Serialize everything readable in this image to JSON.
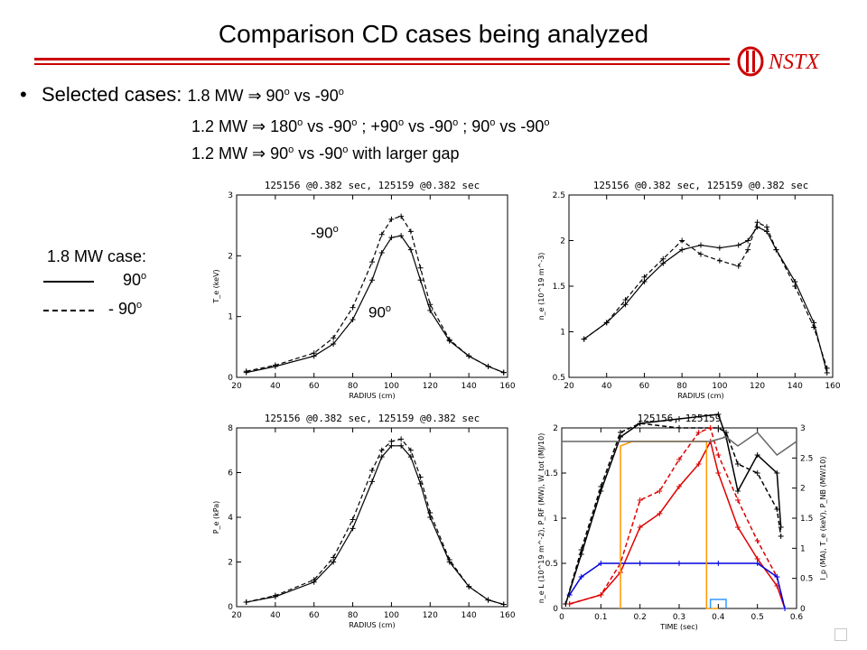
{
  "header": {
    "title": "Comparison CD cases being analyzed",
    "rule_color": "#cc0000"
  },
  "logo": {
    "text": "NSTX",
    "color": "#cc0000"
  },
  "bullets": {
    "lead": "Selected cases:",
    "lines": [
      {
        "pre": "1.8 MW ⇒ 90",
        "s1": "o",
        "mid": " vs -90",
        "s2": "o",
        "post": "",
        "s3": "",
        "tail": "",
        "s4": "",
        "end": "",
        "s5": ""
      },
      {
        "pre": "1.2 MW ⇒ 180",
        "s1": "o",
        "mid": " vs -90",
        "s2": "o",
        "post": " ; +90",
        "s3": "o",
        "tail": " vs -90",
        "s4": "o",
        "end": " ; 90",
        "s5": "o",
        "extra": " vs -90",
        "s6": "o"
      },
      {
        "pre": "1.2 MW ⇒ 90",
        "s1": "o",
        "mid": " vs -90",
        "s2": "o",
        "post": " with larger gap"
      }
    ]
  },
  "legend": {
    "title": "1.8 MW case:",
    "solid_label": "90",
    "solid_sup": "o",
    "dashed_label": "- 90",
    "dashed_sup": "o"
  },
  "annotations": {
    "minus90": "-90",
    "minus90_sup": "o",
    "plus90": "90",
    "plus90_sup": "o"
  },
  "chart_data": [
    {
      "id": "te",
      "type": "line",
      "title": "125156 @0.382 sec, 125159 @0.382 sec",
      "xlabel": "RADIUS (cm)",
      "ylabel": "T_e (keV)",
      "xlim": [
        20,
        160
      ],
      "ylim": [
        0,
        3
      ],
      "xticks": [
        20,
        40,
        60,
        80,
        100,
        120,
        140,
        160
      ],
      "yticks": [
        0,
        1,
        2,
        3
      ],
      "series": [
        {
          "style": "solid",
          "x": [
            25,
            40,
            60,
            70,
            80,
            90,
            95,
            100,
            105,
            110,
            115,
            120,
            130,
            140,
            150,
            158
          ],
          "y": [
            0.08,
            0.18,
            0.35,
            0.55,
            0.95,
            1.6,
            2.05,
            2.3,
            2.33,
            2.1,
            1.6,
            1.1,
            0.6,
            0.35,
            0.18,
            0.08
          ]
        },
        {
          "style": "dashed",
          "x": [
            25,
            40,
            60,
            70,
            80,
            90,
            95,
            100,
            105,
            110,
            115,
            120,
            130,
            140,
            150,
            158
          ],
          "y": [
            0.1,
            0.2,
            0.4,
            0.65,
            1.15,
            1.9,
            2.35,
            2.6,
            2.65,
            2.4,
            1.8,
            1.2,
            0.62,
            0.35,
            0.18,
            0.08
          ]
        }
      ]
    },
    {
      "id": "ne",
      "type": "line",
      "title": "125156 @0.382 sec, 125159 @0.382 sec",
      "xlabel": "RADIUS (cm)",
      "ylabel": "n_e (10^19 m^-3)",
      "xlim": [
        20,
        160
      ],
      "ylim": [
        0.5,
        2.5
      ],
      "xticks": [
        20,
        40,
        60,
        80,
        100,
        120,
        140,
        160
      ],
      "yticks": [
        0.5,
        1.0,
        1.5,
        2.0,
        2.5
      ],
      "series": [
        {
          "style": "solid",
          "x": [
            28,
            40,
            50,
            60,
            70,
            80,
            90,
            100,
            110,
            115,
            120,
            125,
            130,
            140,
            150,
            157
          ],
          "y": [
            0.92,
            1.1,
            1.3,
            1.55,
            1.75,
            1.9,
            1.95,
            1.92,
            1.95,
            2.0,
            2.15,
            2.1,
            1.9,
            1.55,
            1.1,
            0.55
          ]
        },
        {
          "style": "dashed",
          "x": [
            28,
            40,
            50,
            60,
            70,
            80,
            90,
            100,
            110,
            115,
            120,
            125,
            130,
            140,
            150,
            157
          ],
          "y": [
            0.92,
            1.1,
            1.35,
            1.6,
            1.8,
            2.0,
            1.85,
            1.78,
            1.72,
            1.9,
            2.2,
            2.15,
            1.9,
            1.5,
            1.05,
            0.6
          ]
        }
      ]
    },
    {
      "id": "pe",
      "type": "line",
      "title": "125156 @0.382 sec, 125159 @0.382 sec",
      "xlabel": "RADIUS (cm)",
      "ylabel": "P_e (kPa)",
      "xlim": [
        20,
        160
      ],
      "ylim": [
        0,
        8
      ],
      "xticks": [
        20,
        40,
        60,
        80,
        100,
        120,
        140,
        160
      ],
      "yticks": [
        0,
        2,
        4,
        6,
        8
      ],
      "series": [
        {
          "style": "solid",
          "x": [
            25,
            40,
            60,
            70,
            80,
            90,
            95,
            100,
            105,
            110,
            115,
            120,
            130,
            140,
            150,
            158
          ],
          "y": [
            0.2,
            0.45,
            1.1,
            2.0,
            3.5,
            5.6,
            6.7,
            7.2,
            7.2,
            6.7,
            5.5,
            4.0,
            2.0,
            0.9,
            0.3,
            0.1
          ]
        },
        {
          "style": "dashed",
          "x": [
            25,
            40,
            60,
            70,
            80,
            90,
            95,
            100,
            105,
            110,
            115,
            120,
            130,
            140,
            150,
            158
          ],
          "y": [
            0.2,
            0.5,
            1.2,
            2.2,
            3.9,
            6.1,
            7.0,
            7.4,
            7.5,
            7.0,
            5.8,
            4.2,
            2.1,
            0.9,
            0.3,
            0.1
          ]
        }
      ]
    },
    {
      "id": "time",
      "type": "line",
      "title": "125156, 125159",
      "xlabel": "TIME (sec)",
      "ylabel": "n_e L (10^19 m^-2), P_RF (MW), W_tot (MJ/10)",
      "ylabel2": "I_p (MA), T_e (keV), P_NB (MW/10)",
      "xlim": [
        0,
        0.6
      ],
      "ylim": [
        0,
        2.0
      ],
      "ylim2": [
        0,
        3.0
      ],
      "xticks": [
        0.0,
        0.1,
        0.2,
        0.3,
        0.4,
        0.5,
        0.6
      ],
      "yticks": [
        0.0,
        0.5,
        1.0,
        1.5,
        2.0
      ],
      "yticks2": [
        0.0,
        0.5,
        1.0,
        1.5,
        2.0,
        2.5,
        3.0
      ],
      "series": [
        {
          "color": "#000000",
          "style": "solid",
          "x": [
            0.01,
            0.05,
            0.1,
            0.15,
            0.2,
            0.3,
            0.4,
            0.42,
            0.45,
            0.5,
            0.55,
            0.56
          ],
          "y": [
            0.05,
            0.6,
            1.3,
            1.9,
            2.05,
            2.1,
            2.15,
            1.9,
            1.3,
            1.7,
            1.5,
            0.9
          ]
        },
        {
          "color": "#000000",
          "style": "dashed",
          "x": [
            0.01,
            0.05,
            0.1,
            0.15,
            0.2,
            0.3,
            0.4,
            0.42,
            0.45,
            0.5,
            0.55,
            0.56
          ],
          "y": [
            0.05,
            0.65,
            1.35,
            1.95,
            2.05,
            2.0,
            2.0,
            1.95,
            1.6,
            1.5,
            1.1,
            0.8
          ]
        },
        {
          "color": "#dd0000",
          "style": "solid",
          "x": [
            0.02,
            0.1,
            0.15,
            0.2,
            0.25,
            0.3,
            0.35,
            0.38,
            0.4,
            0.45,
            0.5,
            0.55,
            0.57
          ],
          "y": [
            0.05,
            0.15,
            0.4,
            0.9,
            1.05,
            1.35,
            1.6,
            1.85,
            1.5,
            0.9,
            0.55,
            0.25,
            0.0
          ]
        },
        {
          "color": "#dd0000",
          "style": "dashed",
          "x": [
            0.02,
            0.1,
            0.15,
            0.2,
            0.25,
            0.3,
            0.35,
            0.38,
            0.4,
            0.45,
            0.5,
            0.55,
            0.57
          ],
          "y": [
            0.05,
            0.15,
            0.5,
            1.2,
            1.3,
            1.65,
            1.95,
            2.0,
            1.7,
            1.2,
            0.75,
            0.35,
            0.0
          ]
        },
        {
          "color": "#0000dd",
          "style": "solid",
          "x": [
            0.02,
            0.05,
            0.1,
            0.2,
            0.3,
            0.4,
            0.5,
            0.55,
            0.57
          ],
          "y": [
            0.15,
            0.35,
            0.5,
            0.5,
            0.5,
            0.5,
            0.5,
            0.35,
            0.0
          ]
        },
        {
          "color": "#ff9900",
          "style": "solid",
          "x": [
            0.15,
            0.15,
            0.18,
            0.3,
            0.37,
            0.37,
            0.4,
            0.4
          ],
          "y": [
            0.0,
            1.8,
            1.85,
            1.85,
            1.85,
            0.0,
            0.0,
            0.0
          ]
        },
        {
          "color": "#3399ff",
          "style": "solid",
          "x": [
            0.38,
            0.38,
            0.42,
            0.42
          ],
          "y": [
            0.0,
            0.1,
            0.1,
            0.0
          ]
        },
        {
          "color": "#666666",
          "style": "solid",
          "x": [
            0.0,
            0.1,
            0.2,
            0.3,
            0.38,
            0.42,
            0.45,
            0.5,
            0.55,
            0.6
          ],
          "y": [
            1.85,
            1.85,
            1.85,
            1.85,
            1.85,
            1.9,
            1.8,
            1.95,
            1.7,
            1.85
          ]
        }
      ]
    }
  ]
}
